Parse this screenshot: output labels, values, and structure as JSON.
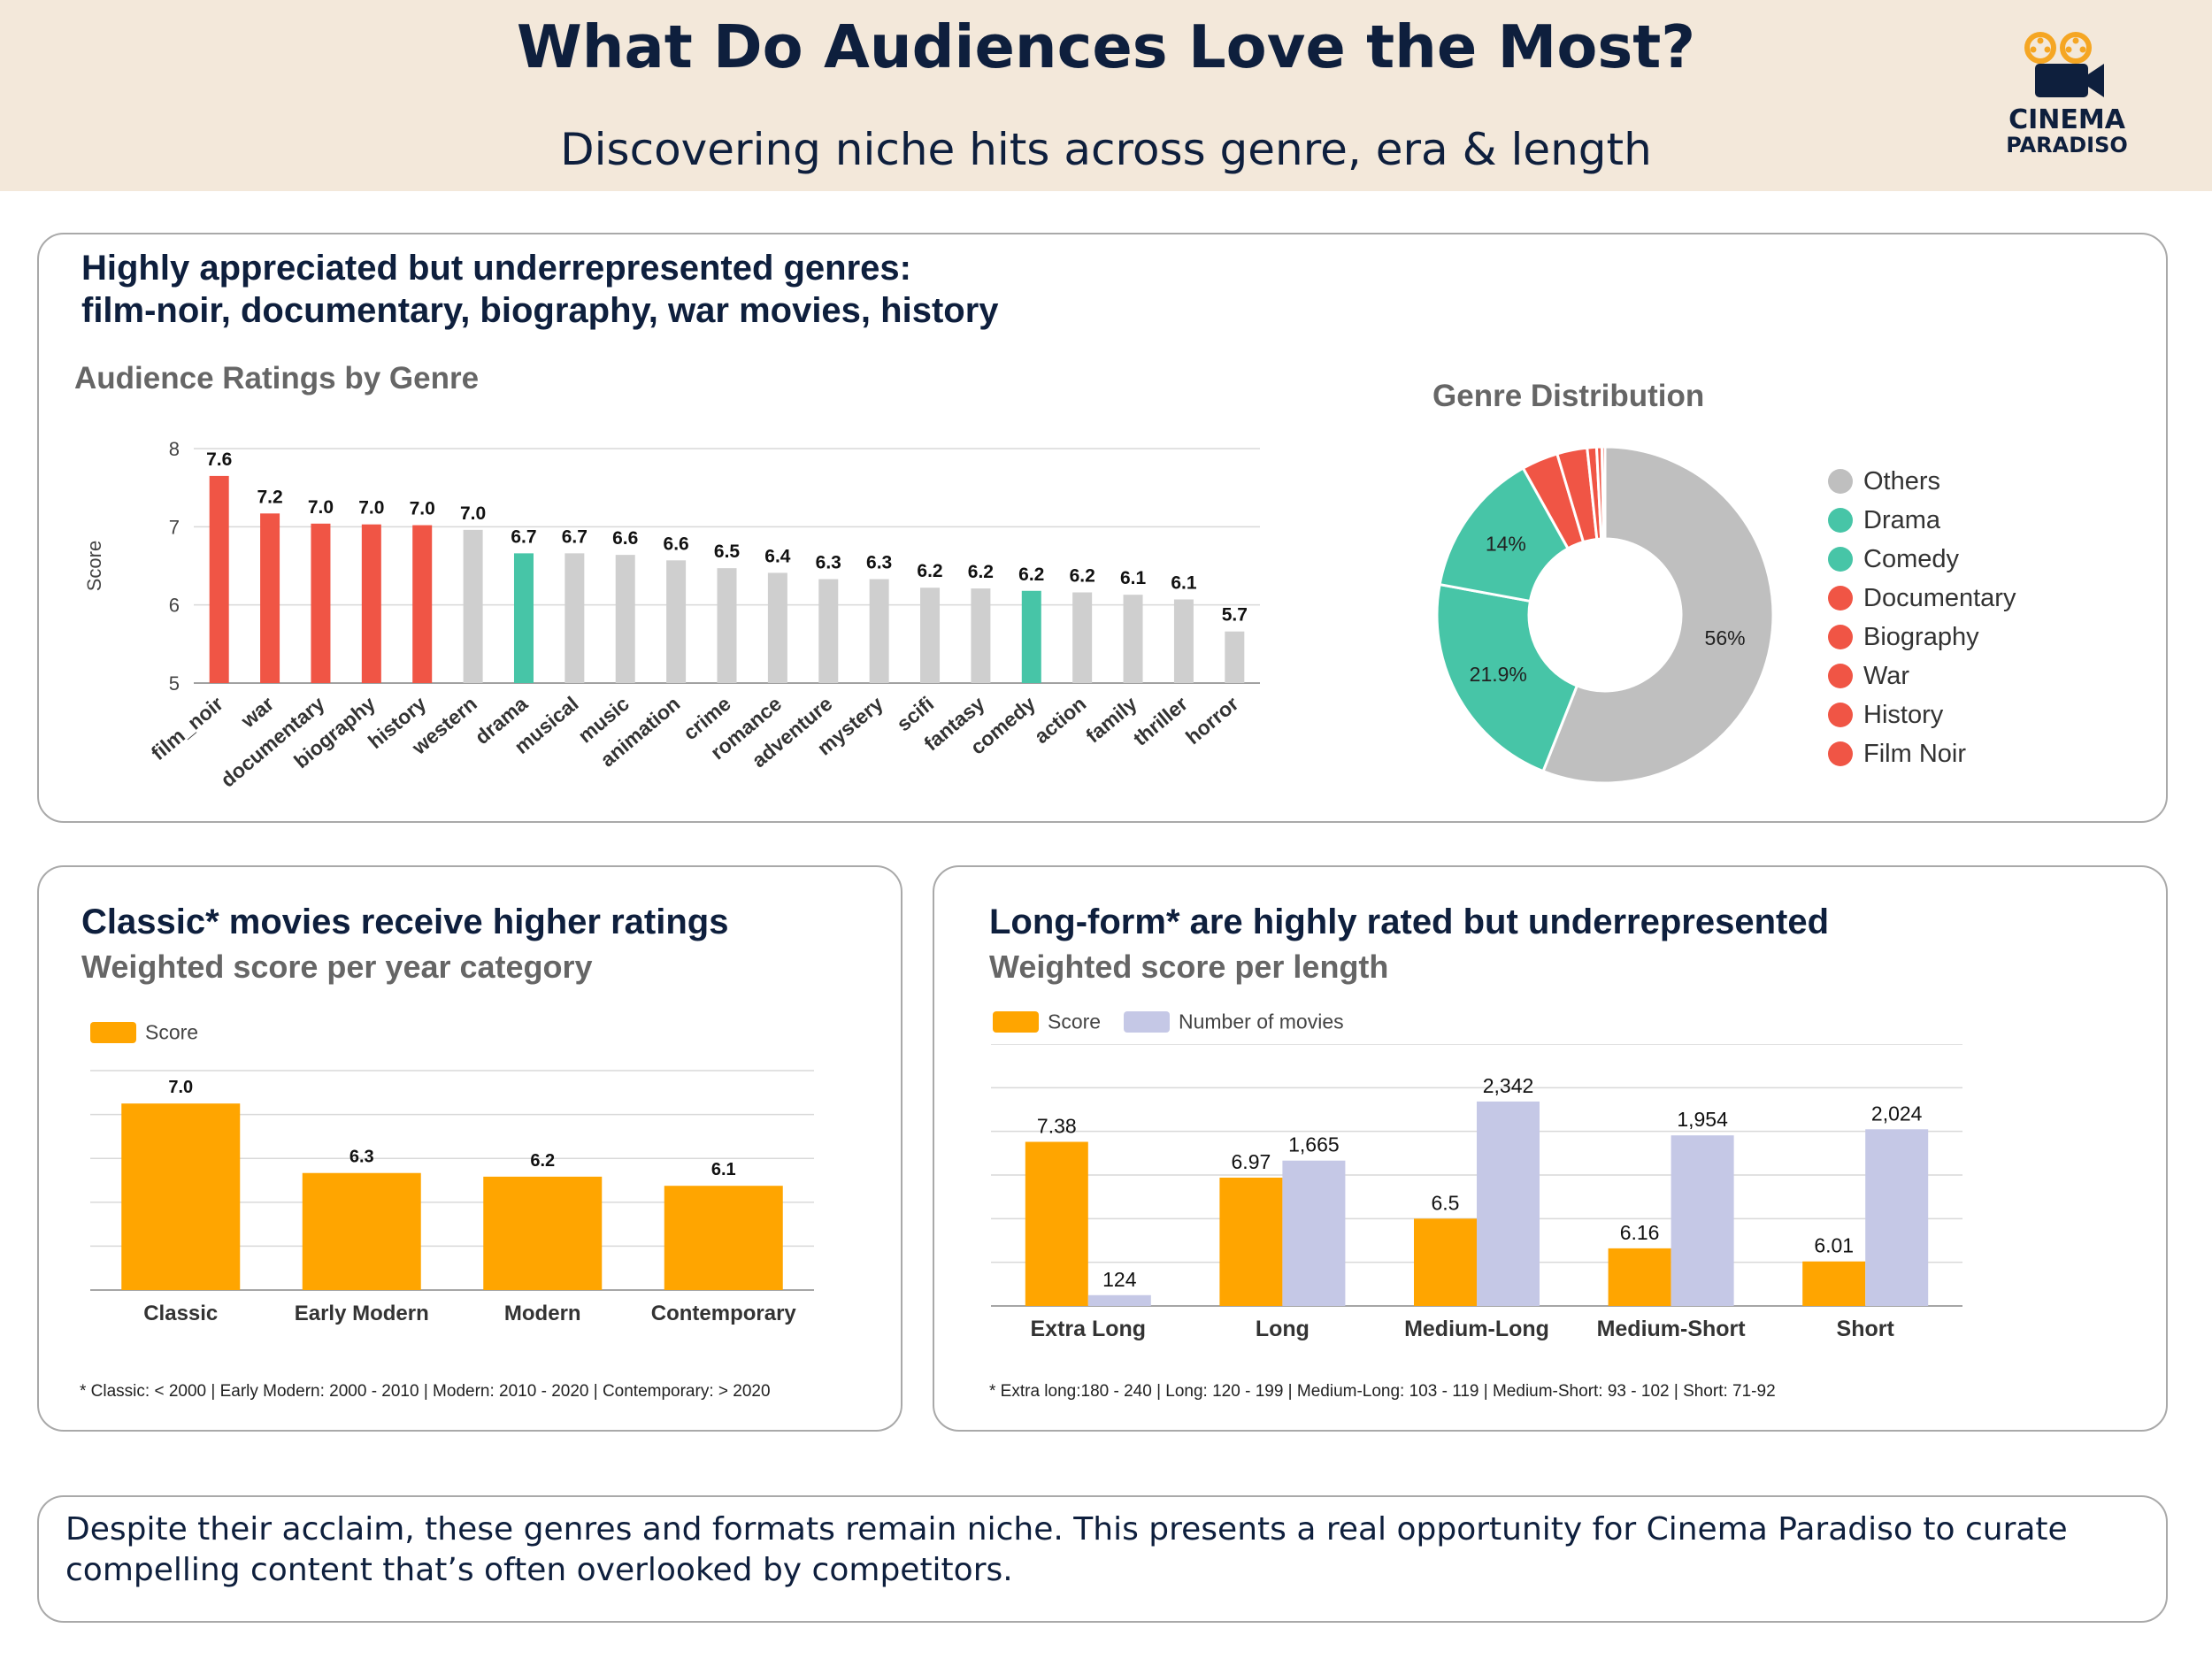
{
  "header": {
    "title": "What Do Audiences Love the Most?",
    "subtitle": "Discovering niche hits across genre, era & length",
    "logo_line1": "CINEMA",
    "logo_line2": "PARADISO"
  },
  "colors": {
    "header_bg": "#f3e8da",
    "navy": "#0e1f3d",
    "highlight_red": "#f05545",
    "highlight_teal": "#47c5a7",
    "neutral_gray": "#cfcfcf",
    "amber": "#ffa500",
    "lavender": "#c5c8e6",
    "logo_orange": "#f5a623"
  },
  "genre_panel": {
    "title_line1": "Highly appreciated but underrepresented genres:",
    "title_line2": "film-noir, documentary, biography, war movies, history"
  },
  "year_panel": {
    "title": "Classic* movies receive higher ratings",
    "subtitle": "Weighted score per year category",
    "footnote": "* Classic: < 2000 | Early Modern:  2000 - 2010 |  Modern: 2010 - 2020 | Contemporary: > 2020"
  },
  "length_panel": {
    "title": "Long-form* are highly rated but underrepresented",
    "subtitle": "Weighted score per length",
    "footnote": "* Extra long:180 - 240 | Long:  120 - 199 | Medium-Long: 103 - 119 | Medium-Short: 93 - 102 | Short: 71-92"
  },
  "conclusion": {
    "text": "Despite their acclaim, these genres and formats remain niche. This presents a real opportunity for Cinema Paradiso to curate compelling content that’s often overlooked by competitors."
  },
  "chart_data": [
    {
      "id": "genre_ratings",
      "type": "bar",
      "title": "Audience Ratings by Genre",
      "xlabel": "",
      "ylabel": "Score",
      "ylim": [
        5,
        8
      ],
      "yticks": [
        5,
        6,
        7,
        8
      ],
      "grid": true,
      "categories": [
        "film_noir",
        "war",
        "documentary",
        "biography",
        "history",
        "western",
        "drama",
        "musical",
        "music",
        "animation",
        "crime",
        "romance",
        "adventure",
        "mystery",
        "scifi",
        "fantasy",
        "comedy",
        "action",
        "family",
        "thriller",
        "horror"
      ],
      "values": [
        7.65,
        7.17,
        7.04,
        7.03,
        7.02,
        6.96,
        6.66,
        6.66,
        6.64,
        6.57,
        6.47,
        6.41,
        6.33,
        6.33,
        6.22,
        6.21,
        6.18,
        6.16,
        6.13,
        6.07,
        5.66
      ],
      "labels": [
        "7.6",
        "7.2",
        "7.0",
        "7.0",
        "7.0",
        "7.0",
        "6.7",
        "6.7",
        "6.6",
        "6.6",
        "6.5",
        "6.4",
        "6.3",
        "6.3",
        "6.2",
        "6.2",
        "6.2",
        "6.2",
        "6.1",
        "6.1",
        "5.7"
      ],
      "bar_colors": [
        "#f05545",
        "#f05545",
        "#f05545",
        "#f05545",
        "#f05545",
        "#cfcfcf",
        "#47c5a7",
        "#cfcfcf",
        "#cfcfcf",
        "#cfcfcf",
        "#cfcfcf",
        "#cfcfcf",
        "#cfcfcf",
        "#cfcfcf",
        "#cfcfcf",
        "#cfcfcf",
        "#47c5a7",
        "#cfcfcf",
        "#cfcfcf",
        "#cfcfcf",
        "#cfcfcf"
      ]
    },
    {
      "id": "genre_distribution",
      "type": "pie",
      "title": "Genre Distribution",
      "donut": true,
      "legend": "right",
      "slices": [
        {
          "name": "Others",
          "value": 56.0,
          "label": "56%",
          "color": "#bfbfbf"
        },
        {
          "name": "Drama",
          "value": 21.9,
          "label": "21.9%",
          "color": "#47c5a7"
        },
        {
          "name": "Comedy",
          "value": 14.0,
          "label": "14%",
          "color": "#47c5a7"
        },
        {
          "name": "Documentary",
          "value": 3.5,
          "label": "",
          "color": "#f05545"
        },
        {
          "name": "Biography",
          "value": 2.9,
          "label": "",
          "color": "#f05545"
        },
        {
          "name": "War",
          "value": 0.9,
          "label": "",
          "color": "#f05545"
        },
        {
          "name": "History",
          "value": 0.5,
          "label": "",
          "color": "#f05545"
        },
        {
          "name": "Film Noir",
          "value": 0.3,
          "label": "",
          "color": "#f05545"
        }
      ]
    },
    {
      "id": "year_scores",
      "type": "bar",
      "title": "",
      "xlabel": "",
      "ylabel": "",
      "ylim": [
        5,
        7.4
      ],
      "grid": true,
      "legend": "top-left",
      "categories": [
        "Classic",
        "Early Modern",
        "Modern",
        "Contemporary"
      ],
      "series": [
        {
          "name": "Score",
          "values": [
            7.04,
            6.28,
            6.24,
            6.14
          ],
          "labels": [
            "7.0",
            "6.3",
            "6.2",
            "6.1"
          ],
          "color": "#ffa500"
        }
      ]
    },
    {
      "id": "length_scores",
      "type": "bar",
      "title": "",
      "xlabel": "",
      "ylabel": "",
      "grid": true,
      "legend": "top-left",
      "categories": [
        "Extra Long",
        "Long",
        "Medium-Long",
        "Medium-Short",
        "Short"
      ],
      "series": [
        {
          "name": "Score",
          "values": [
            7.38,
            6.97,
            6.5,
            6.16,
            6.01
          ],
          "labels": [
            "7.38",
            "6.97",
            "6.5",
            "6.16",
            "6.01"
          ],
          "color": "#ffa500",
          "ylim": [
            5.5,
            8.5
          ]
        },
        {
          "name": "Number of movies",
          "values": [
            124,
            1665,
            2342,
            1954,
            2024
          ],
          "labels": [
            "124",
            "1,665",
            "2,342",
            "1,954",
            "2,024"
          ],
          "color": "#c5c8e6",
          "ylim": [
            0,
            3000
          ]
        }
      ]
    }
  ]
}
